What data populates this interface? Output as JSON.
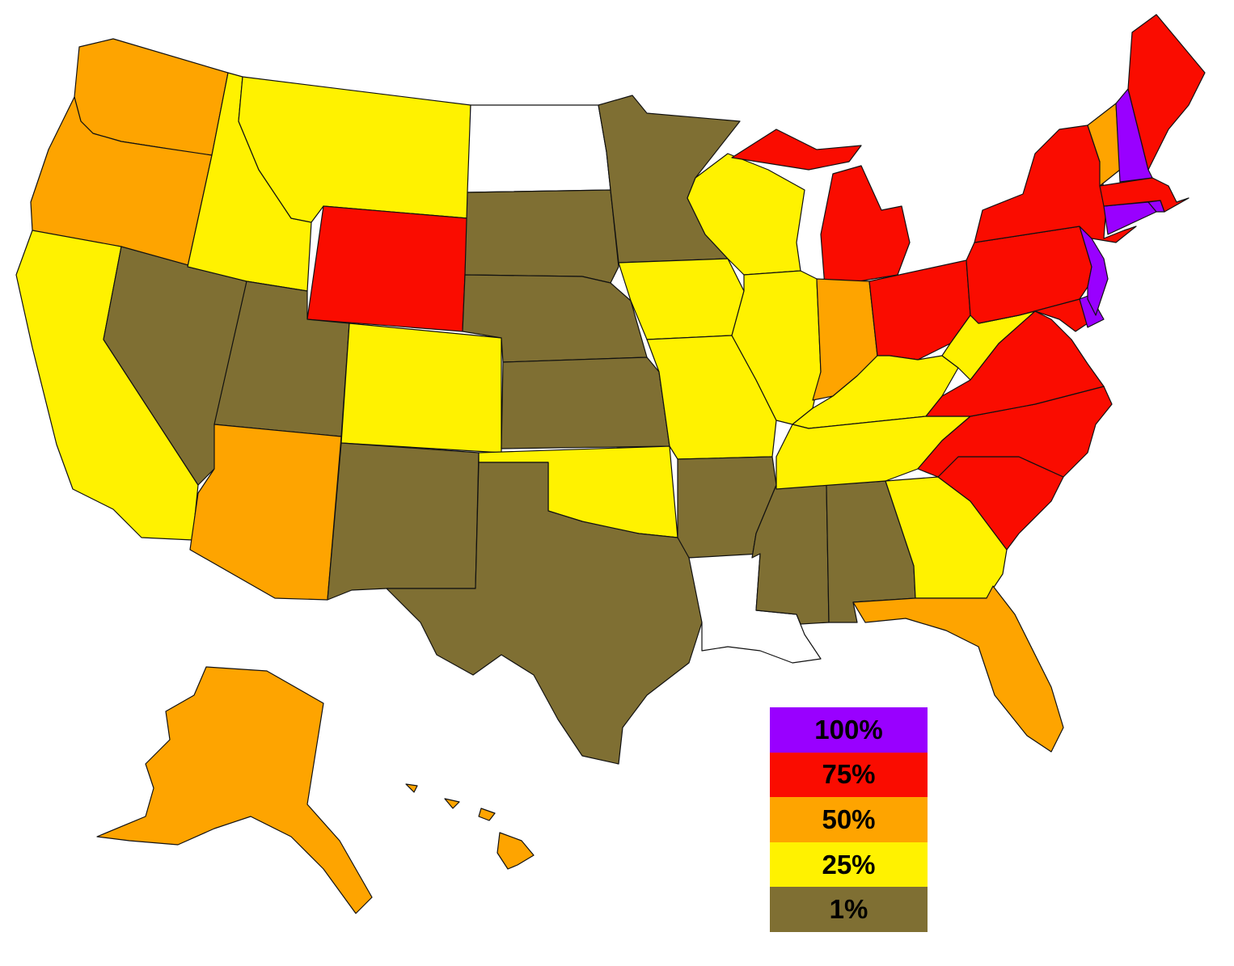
{
  "legend": [
    {
      "label": "100%",
      "color": "#9900ff",
      "class": "c100"
    },
    {
      "label": "75%",
      "color": "#fa0c00",
      "class": "c75"
    },
    {
      "label": "50%",
      "color": "#fea400",
      "class": "c50"
    },
    {
      "label": "25%",
      "color": "#fff200",
      "class": "c25"
    },
    {
      "label": "1%",
      "color": "#7f6f33",
      "class": "c1"
    }
  ],
  "no_data_color": "#ffffff",
  "states": {
    "WA": "50%",
    "OR": "50%",
    "CA": "25%",
    "NV": "1%",
    "ID": "25%",
    "MT": "25%",
    "WY": "75%",
    "UT": "1%",
    "AZ": "50%",
    "CO": "25%",
    "NM": "1%",
    "ND": "none",
    "SD": "1%",
    "NE": "1%",
    "KS": "1%",
    "OK": "25%",
    "TX": "1%",
    "MN": "1%",
    "IA": "25%",
    "MO": "25%",
    "AR": "1%",
    "LA": "none",
    "WI": "25%",
    "IL": "25%",
    "MS": "1%",
    "AL": "1%",
    "MI": "75%",
    "IN": "50%",
    "KY": "25%",
    "TN": "25%",
    "OH": "75%",
    "WV": "25%",
    "GA": "25%",
    "FL": "50%",
    "SC": "75%",
    "NC": "75%",
    "VA": "75%",
    "MD": "75%",
    "DE": "100%",
    "NJ": "100%",
    "PA": "75%",
    "NY": "75%",
    "CT": "100%",
    "RI": "100%",
    "MA": "75%",
    "VT": "50%",
    "NH": "100%",
    "ME": "75%",
    "AK": "50%",
    "HI": "50%"
  }
}
